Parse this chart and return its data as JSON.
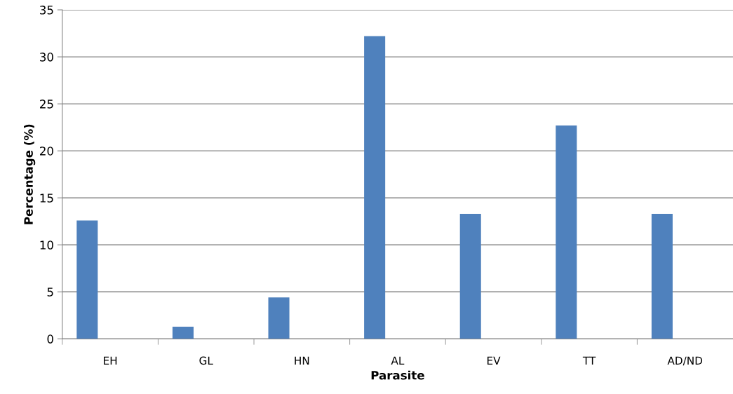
{
  "chart_data": {
    "type": "bar",
    "xlabel": "Parasite",
    "ylabel": "Percentage (%)",
    "categories": [
      "EH",
      "GL",
      "HN",
      "AL",
      "EV",
      "TT",
      "AD/ND"
    ],
    "values": [
      12.6,
      1.3,
      4.4,
      32.2,
      13.3,
      22.7,
      13.3
    ],
    "color": "#4f81bd",
    "ylim": [
      0,
      35
    ],
    "yticks": [
      0,
      5,
      10,
      15,
      20,
      25,
      30,
      35
    ],
    "grid": "y"
  }
}
